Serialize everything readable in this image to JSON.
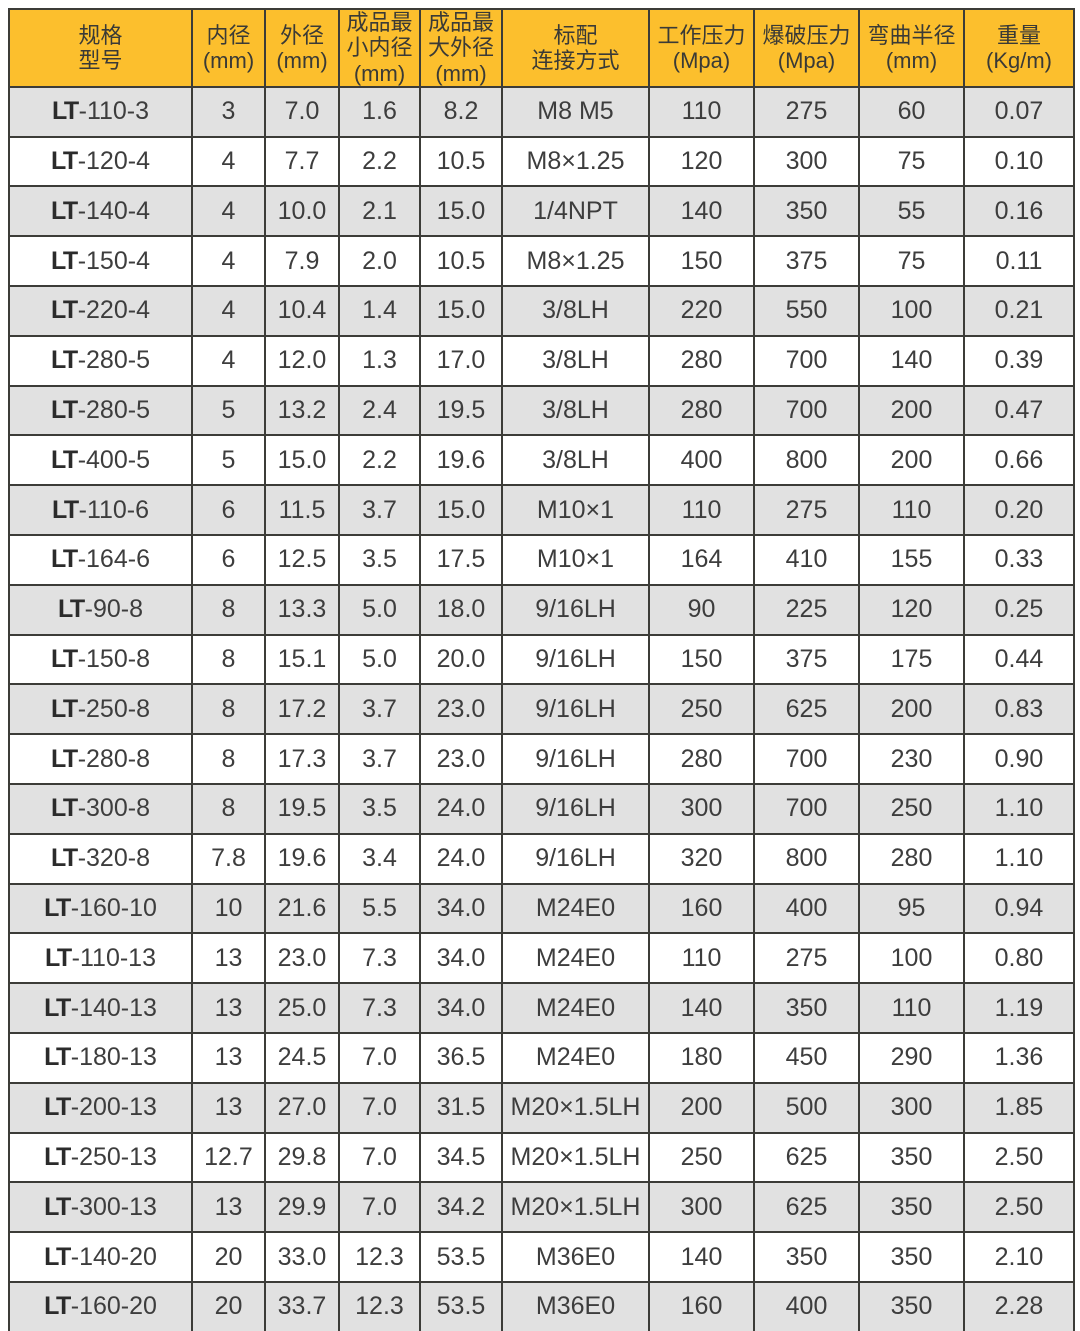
{
  "colors": {
    "header_bg": "#fcbf2d",
    "row_alt_bg": "#e1e1e1",
    "row_bg": "#ffffff",
    "grid_border": "#3c3c38",
    "text": "#3d3d3d"
  },
  "table": {
    "columns": [
      {
        "id": "model",
        "lines": [
          "规格",
          "型号"
        ]
      },
      {
        "id": "inner-diameter",
        "lines": [
          "内径",
          "(mm)"
        ]
      },
      {
        "id": "outer-diameter",
        "lines": [
          "外径",
          "(mm)"
        ]
      },
      {
        "id": "min-inner-diameter",
        "lines": [
          "成品最",
          "小内径",
          "(mm)"
        ]
      },
      {
        "id": "max-outer-diameter",
        "lines": [
          "成品最",
          "大外径",
          "(mm)"
        ]
      },
      {
        "id": "connection",
        "lines": [
          "标配",
          "连接方式"
        ]
      },
      {
        "id": "working-pressure",
        "lines": [
          "工作压力",
          "(Mpa)"
        ]
      },
      {
        "id": "burst-pressure",
        "lines": [
          "爆破压力",
          "(Mpa)"
        ]
      },
      {
        "id": "bend-radius",
        "lines": [
          "弯曲半径",
          "(mm)"
        ]
      },
      {
        "id": "weight",
        "lines": [
          "重量",
          "(Kg/m)"
        ]
      }
    ],
    "rows": [
      {
        "model_prefix": "LT",
        "model_suffix": "-110-3",
        "inner_diameter": "3",
        "outer_diameter": "7.0",
        "min_inner_diameter": "1.6",
        "max_outer_diameter": "8.2",
        "connection": "M8 M5",
        "working_pressure": "110",
        "burst_pressure": "275",
        "bend_radius": "60",
        "weight": "0.07"
      },
      {
        "model_prefix": "LT",
        "model_suffix": "-120-4",
        "inner_diameter": "4",
        "outer_diameter": "7.7",
        "min_inner_diameter": "2.2",
        "max_outer_diameter": "10.5",
        "connection": "M8×1.25",
        "working_pressure": "120",
        "burst_pressure": "300",
        "bend_radius": "75",
        "weight": "0.10"
      },
      {
        "model_prefix": "LT",
        "model_suffix": "-140-4",
        "inner_diameter": "4",
        "outer_diameter": "10.0",
        "min_inner_diameter": "2.1",
        "max_outer_diameter": "15.0",
        "connection": "1/4NPT",
        "working_pressure": "140",
        "burst_pressure": "350",
        "bend_radius": "55",
        "weight": "0.16"
      },
      {
        "model_prefix": "LT",
        "model_suffix": "-150-4",
        "inner_diameter": "4",
        "outer_diameter": "7.9",
        "min_inner_diameter": "2.0",
        "max_outer_diameter": "10.5",
        "connection": "M8×1.25",
        "working_pressure": "150",
        "burst_pressure": "375",
        "bend_radius": "75",
        "weight": "0.11"
      },
      {
        "model_prefix": "LT",
        "model_suffix": "-220-4",
        "inner_diameter": "4",
        "outer_diameter": "10.4",
        "min_inner_diameter": "1.4",
        "max_outer_diameter": "15.0",
        "connection": "3/8LH",
        "working_pressure": "220",
        "burst_pressure": "550",
        "bend_radius": "100",
        "weight": "0.21"
      },
      {
        "model_prefix": "LT",
        "model_suffix": "-280-5",
        "inner_diameter": "4",
        "outer_diameter": "12.0",
        "min_inner_diameter": "1.3",
        "max_outer_diameter": "17.0",
        "connection": "3/8LH",
        "working_pressure": "280",
        "burst_pressure": "700",
        "bend_radius": "140",
        "weight": "0.39"
      },
      {
        "model_prefix": "LT",
        "model_suffix": "-280-5",
        "inner_diameter": "5",
        "outer_diameter": "13.2",
        "min_inner_diameter": "2.4",
        "max_outer_diameter": "19.5",
        "connection": "3/8LH",
        "working_pressure": "280",
        "burst_pressure": "700",
        "bend_radius": "200",
        "weight": "0.47"
      },
      {
        "model_prefix": "LT",
        "model_suffix": "-400-5",
        "inner_diameter": "5",
        "outer_diameter": "15.0",
        "min_inner_diameter": "2.2",
        "max_outer_diameter": "19.6",
        "connection": "3/8LH",
        "working_pressure": "400",
        "burst_pressure": "800",
        "bend_radius": "200",
        "weight": "0.66"
      },
      {
        "model_prefix": "LT",
        "model_suffix": "-110-6",
        "inner_diameter": "6",
        "outer_diameter": "11.5",
        "min_inner_diameter": "3.7",
        "max_outer_diameter": "15.0",
        "connection": "M10×1",
        "working_pressure": "110",
        "burst_pressure": "275",
        "bend_radius": "110",
        "weight": "0.20"
      },
      {
        "model_prefix": "LT",
        "model_suffix": "-164-6",
        "inner_diameter": "6",
        "outer_diameter": "12.5",
        "min_inner_diameter": "3.5",
        "max_outer_diameter": "17.5",
        "connection": "M10×1",
        "working_pressure": "164",
        "burst_pressure": "410",
        "bend_radius": "155",
        "weight": "0.33"
      },
      {
        "model_prefix": "LT",
        "model_suffix": "-90-8",
        "inner_diameter": "8",
        "outer_diameter": "13.3",
        "min_inner_diameter": "5.0",
        "max_outer_diameter": "18.0",
        "connection": "9/16LH",
        "working_pressure": "90",
        "burst_pressure": "225",
        "bend_radius": "120",
        "weight": "0.25"
      },
      {
        "model_prefix": "LT",
        "model_suffix": "-150-8",
        "inner_diameter": "8",
        "outer_diameter": "15.1",
        "min_inner_diameter": "5.0",
        "max_outer_diameter": "20.0",
        "connection": "9/16LH",
        "working_pressure": "150",
        "burst_pressure": "375",
        "bend_radius": "175",
        "weight": "0.44"
      },
      {
        "model_prefix": "LT",
        "model_suffix": "-250-8",
        "inner_diameter": "8",
        "outer_diameter": "17.2",
        "min_inner_diameter": "3.7",
        "max_outer_diameter": "23.0",
        "connection": "9/16LH",
        "working_pressure": "250",
        "burst_pressure": "625",
        "bend_radius": "200",
        "weight": "0.83"
      },
      {
        "model_prefix": "LT",
        "model_suffix": "-280-8",
        "inner_diameter": "8",
        "outer_diameter": "17.3",
        "min_inner_diameter": "3.7",
        "max_outer_diameter": "23.0",
        "connection": "9/16LH",
        "working_pressure": "280",
        "burst_pressure": "700",
        "bend_radius": "230",
        "weight": "0.90"
      },
      {
        "model_prefix": "LT",
        "model_suffix": "-300-8",
        "inner_diameter": "8",
        "outer_diameter": "19.5",
        "min_inner_diameter": "3.5",
        "max_outer_diameter": "24.0",
        "connection": "9/16LH",
        "working_pressure": "300",
        "burst_pressure": "700",
        "bend_radius": "250",
        "weight": "1.10"
      },
      {
        "model_prefix": "LT",
        "model_suffix": "-320-8",
        "inner_diameter": "7.8",
        "outer_diameter": "19.6",
        "min_inner_diameter": "3.4",
        "max_outer_diameter": "24.0",
        "connection": "9/16LH",
        "working_pressure": "320",
        "burst_pressure": "800",
        "bend_radius": "280",
        "weight": "1.10"
      },
      {
        "model_prefix": "LT",
        "model_suffix": "-160-10",
        "inner_diameter": "10",
        "outer_diameter": "21.6",
        "min_inner_diameter": "5.5",
        "max_outer_diameter": "34.0",
        "connection": "M24E0",
        "working_pressure": "160",
        "burst_pressure": "400",
        "bend_radius": "95",
        "weight": "0.94"
      },
      {
        "model_prefix": "LT",
        "model_suffix": "-110-13",
        "inner_diameter": "13",
        "outer_diameter": "23.0",
        "min_inner_diameter": "7.3",
        "max_outer_diameter": "34.0",
        "connection": "M24E0",
        "working_pressure": "110",
        "burst_pressure": "275",
        "bend_radius": "100",
        "weight": "0.80"
      },
      {
        "model_prefix": "LT",
        "model_suffix": "-140-13",
        "inner_diameter": "13",
        "outer_diameter": "25.0",
        "min_inner_diameter": "7.3",
        "max_outer_diameter": "34.0",
        "connection": "M24E0",
        "working_pressure": "140",
        "burst_pressure": "350",
        "bend_radius": "110",
        "weight": "1.19"
      },
      {
        "model_prefix": "LT",
        "model_suffix": "-180-13",
        "inner_diameter": "13",
        "outer_diameter": "24.5",
        "min_inner_diameter": "7.0",
        "max_outer_diameter": "36.5",
        "connection": "M24E0",
        "working_pressure": "180",
        "burst_pressure": "450",
        "bend_radius": "290",
        "weight": "1.36"
      },
      {
        "model_prefix": "LT",
        "model_suffix": "-200-13",
        "inner_diameter": "13",
        "outer_diameter": "27.0",
        "min_inner_diameter": "7.0",
        "max_outer_diameter": "31.5",
        "connection": "M20×1.5LH",
        "working_pressure": "200",
        "burst_pressure": "500",
        "bend_radius": "300",
        "weight": "1.85"
      },
      {
        "model_prefix": "LT",
        "model_suffix": "-250-13",
        "inner_diameter": "12.7",
        "outer_diameter": "29.8",
        "min_inner_diameter": "7.0",
        "max_outer_diameter": "34.5",
        "connection": "M20×1.5LH",
        "working_pressure": "250",
        "burst_pressure": "625",
        "bend_radius": "350",
        "weight": "2.50"
      },
      {
        "model_prefix": "LT",
        "model_suffix": "-300-13",
        "inner_diameter": "13",
        "outer_diameter": "29.9",
        "min_inner_diameter": "7.0",
        "max_outer_diameter": "34.2",
        "connection": "M20×1.5LH",
        "working_pressure": "300",
        "burst_pressure": "625",
        "bend_radius": "350",
        "weight": "2.50"
      },
      {
        "model_prefix": "LT",
        "model_suffix": "-140-20",
        "inner_diameter": "20",
        "outer_diameter": "33.0",
        "min_inner_diameter": "12.3",
        "max_outer_diameter": "53.5",
        "connection": "M36E0",
        "working_pressure": "140",
        "burst_pressure": "350",
        "bend_radius": "350",
        "weight": "2.10"
      },
      {
        "model_prefix": "LT",
        "model_suffix": "-160-20",
        "inner_diameter": "20",
        "outer_diameter": "33.7",
        "min_inner_diameter": "12.3",
        "max_outer_diameter": "53.5",
        "connection": "M36E0",
        "working_pressure": "160",
        "burst_pressure": "400",
        "bend_radius": "350",
        "weight": "2.28"
      }
    ]
  },
  "chart_data": {
    "type": "table",
    "title": "",
    "columns": [
      "规格型号",
      "内径(mm)",
      "外径(mm)",
      "成品最小内径(mm)",
      "成品最大外径(mm)",
      "标配连接方式",
      "工作压力(Mpa)",
      "爆破压力(Mpa)",
      "弯曲半径(mm)",
      "重量(Kg/m)"
    ],
    "rows": [
      [
        "LT-110-3",
        "3",
        "7.0",
        "1.6",
        "8.2",
        "M8 M5",
        "110",
        "275",
        "60",
        "0.07"
      ],
      [
        "LT-120-4",
        "4",
        "7.7",
        "2.2",
        "10.5",
        "M8×1.25",
        "120",
        "300",
        "75",
        "0.10"
      ],
      [
        "LT-140-4",
        "4",
        "10.0",
        "2.1",
        "15.0",
        "1/4NPT",
        "140",
        "350",
        "55",
        "0.16"
      ],
      [
        "LT-150-4",
        "4",
        "7.9",
        "2.0",
        "10.5",
        "M8×1.25",
        "150",
        "375",
        "75",
        "0.11"
      ],
      [
        "LT-220-4",
        "4",
        "10.4",
        "1.4",
        "15.0",
        "3/8LH",
        "220",
        "550",
        "100",
        "0.21"
      ],
      [
        "LT-280-5",
        "4",
        "12.0",
        "1.3",
        "17.0",
        "3/8LH",
        "280",
        "700",
        "140",
        "0.39"
      ],
      [
        "LT-280-5",
        "5",
        "13.2",
        "2.4",
        "19.5",
        "3/8LH",
        "280",
        "700",
        "200",
        "0.47"
      ],
      [
        "LT-400-5",
        "5",
        "15.0",
        "2.2",
        "19.6",
        "3/8LH",
        "400",
        "800",
        "200",
        "0.66"
      ],
      [
        "LT-110-6",
        "6",
        "11.5",
        "3.7",
        "15.0",
        "M10×1",
        "110",
        "275",
        "110",
        "0.20"
      ],
      [
        "LT-164-6",
        "6",
        "12.5",
        "3.5",
        "17.5",
        "M10×1",
        "164",
        "410",
        "155",
        "0.33"
      ],
      [
        "LT-90-8",
        "8",
        "13.3",
        "5.0",
        "18.0",
        "9/16LH",
        "90",
        "225",
        "120",
        "0.25"
      ],
      [
        "LT-150-8",
        "8",
        "15.1",
        "5.0",
        "20.0",
        "9/16LH",
        "150",
        "375",
        "175",
        "0.44"
      ],
      [
        "LT-250-8",
        "8",
        "17.2",
        "3.7",
        "23.0",
        "9/16LH",
        "250",
        "625",
        "200",
        "0.83"
      ],
      [
        "LT-280-8",
        "8",
        "17.3",
        "3.7",
        "23.0",
        "9/16LH",
        "280",
        "700",
        "230",
        "0.90"
      ],
      [
        "LT-300-8",
        "8",
        "19.5",
        "3.5",
        "24.0",
        "9/16LH",
        "300",
        "700",
        "250",
        "1.10"
      ],
      [
        "LT-320-8",
        "7.8",
        "19.6",
        "3.4",
        "24.0",
        "9/16LH",
        "320",
        "800",
        "280",
        "1.10"
      ],
      [
        "LT-160-10",
        "10",
        "21.6",
        "5.5",
        "34.0",
        "M24E0",
        "160",
        "400",
        "95",
        "0.94"
      ],
      [
        "LT-110-13",
        "13",
        "23.0",
        "7.3",
        "34.0",
        "M24E0",
        "110",
        "275",
        "100",
        "0.80"
      ],
      [
        "LT-140-13",
        "13",
        "25.0",
        "7.3",
        "34.0",
        "M24E0",
        "140",
        "350",
        "110",
        "1.19"
      ],
      [
        "LT-180-13",
        "13",
        "24.5",
        "7.0",
        "36.5",
        "M24E0",
        "180",
        "450",
        "290",
        "1.36"
      ],
      [
        "LT-200-13",
        "13",
        "27.0",
        "7.0",
        "31.5",
        "M20×1.5LH",
        "200",
        "500",
        "300",
        "1.85"
      ],
      [
        "LT-250-13",
        "12.7",
        "29.8",
        "7.0",
        "34.5",
        "M20×1.5LH",
        "250",
        "625",
        "350",
        "2.50"
      ],
      [
        "LT-300-13",
        "13",
        "29.9",
        "7.0",
        "34.2",
        "M20×1.5LH",
        "300",
        "625",
        "350",
        "2.50"
      ],
      [
        "LT-140-20",
        "20",
        "33.0",
        "12.3",
        "53.5",
        "M36E0",
        "140",
        "350",
        "350",
        "2.10"
      ],
      [
        "LT-160-20",
        "20",
        "33.7",
        "12.3",
        "53.5",
        "M36E0",
        "160",
        "400",
        "350",
        "2.28"
      ]
    ]
  }
}
